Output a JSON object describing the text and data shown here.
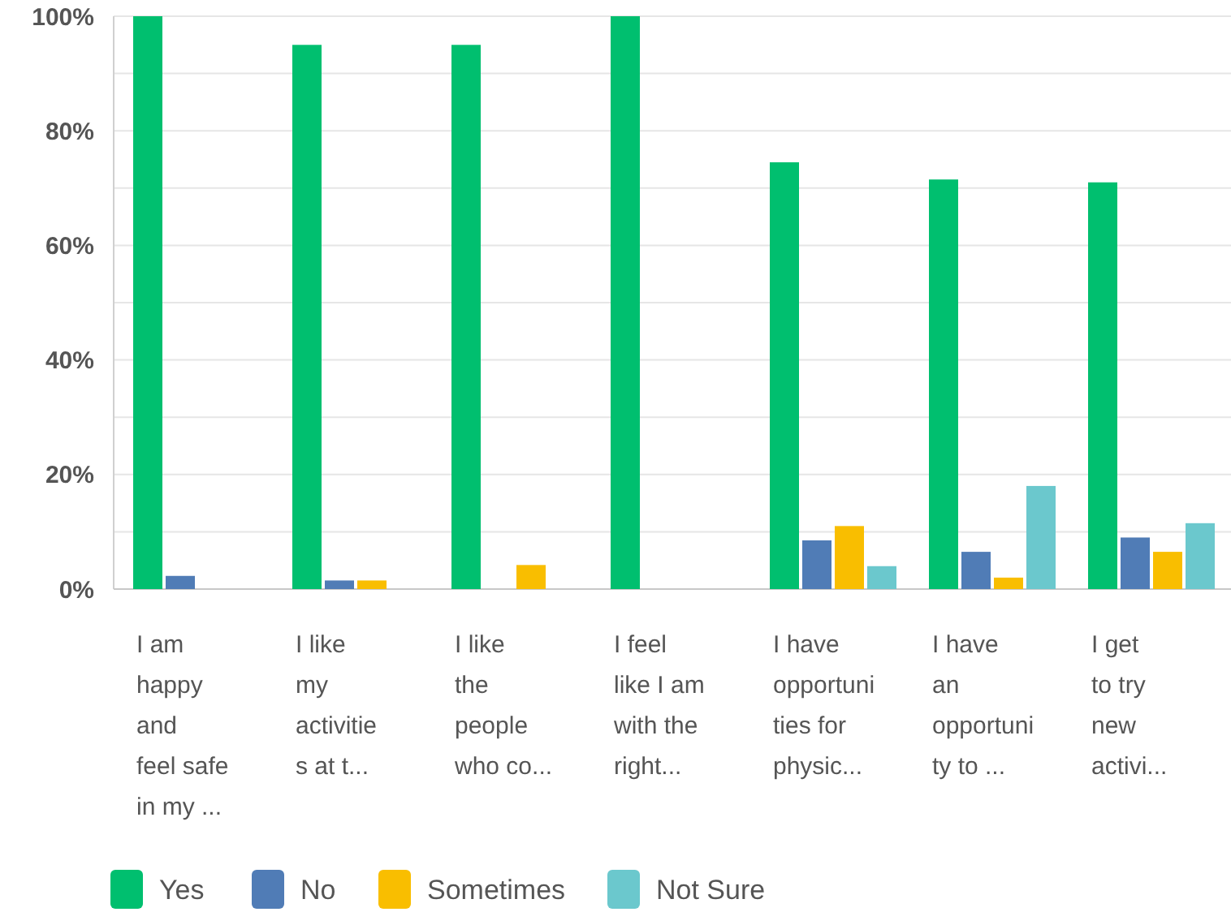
{
  "chart_data": {
    "type": "bar",
    "categories": [
      "I am\nhappy\nand\nfeel safe\nin my ...",
      "I like\nmy\nactivitie\ns at t...",
      "I like\nthe\npeople\nwho co...",
      "I feel\nlike I am\nwith the\nright...",
      "I have\nopportuni\nties for\nphysic...",
      "I have\nan\nopportuni\nty to ...",
      "I get\nto try\nnew\nactivi..."
    ],
    "series": [
      {
        "name": "Yes",
        "color": "#00bf6f",
        "values": [
          100,
          95,
          95,
          100,
          74.5,
          71.5,
          71
        ]
      },
      {
        "name": "No",
        "color": "#507cb6",
        "values": [
          2.3,
          1.5,
          0,
          0,
          8.5,
          6.5,
          9
        ]
      },
      {
        "name": "Sometimes",
        "color": "#f9be00",
        "values": [
          0,
          1.5,
          4.2,
          0,
          11,
          2,
          6.5
        ]
      },
      {
        "name": "Not Sure",
        "color": "#6bc8cd",
        "values": [
          0,
          0,
          0,
          0,
          4,
          18,
          11.5
        ]
      }
    ],
    "ylim": [
      0,
      100
    ],
    "yticks": [
      {
        "value": 0,
        "label": "0%"
      },
      {
        "value": 10,
        "label": null
      },
      {
        "value": 20,
        "label": "20%"
      },
      {
        "value": 30,
        "label": null
      },
      {
        "value": 40,
        "label": "40%"
      },
      {
        "value": 50,
        "label": null
      },
      {
        "value": 60,
        "label": "60%"
      },
      {
        "value": 70,
        "label": null
      },
      {
        "value": 80,
        "label": "80%"
      },
      {
        "value": 90,
        "label": null
      },
      {
        "value": 100,
        "label": "100%"
      }
    ],
    "grid": "y",
    "legend": "bottom left"
  }
}
